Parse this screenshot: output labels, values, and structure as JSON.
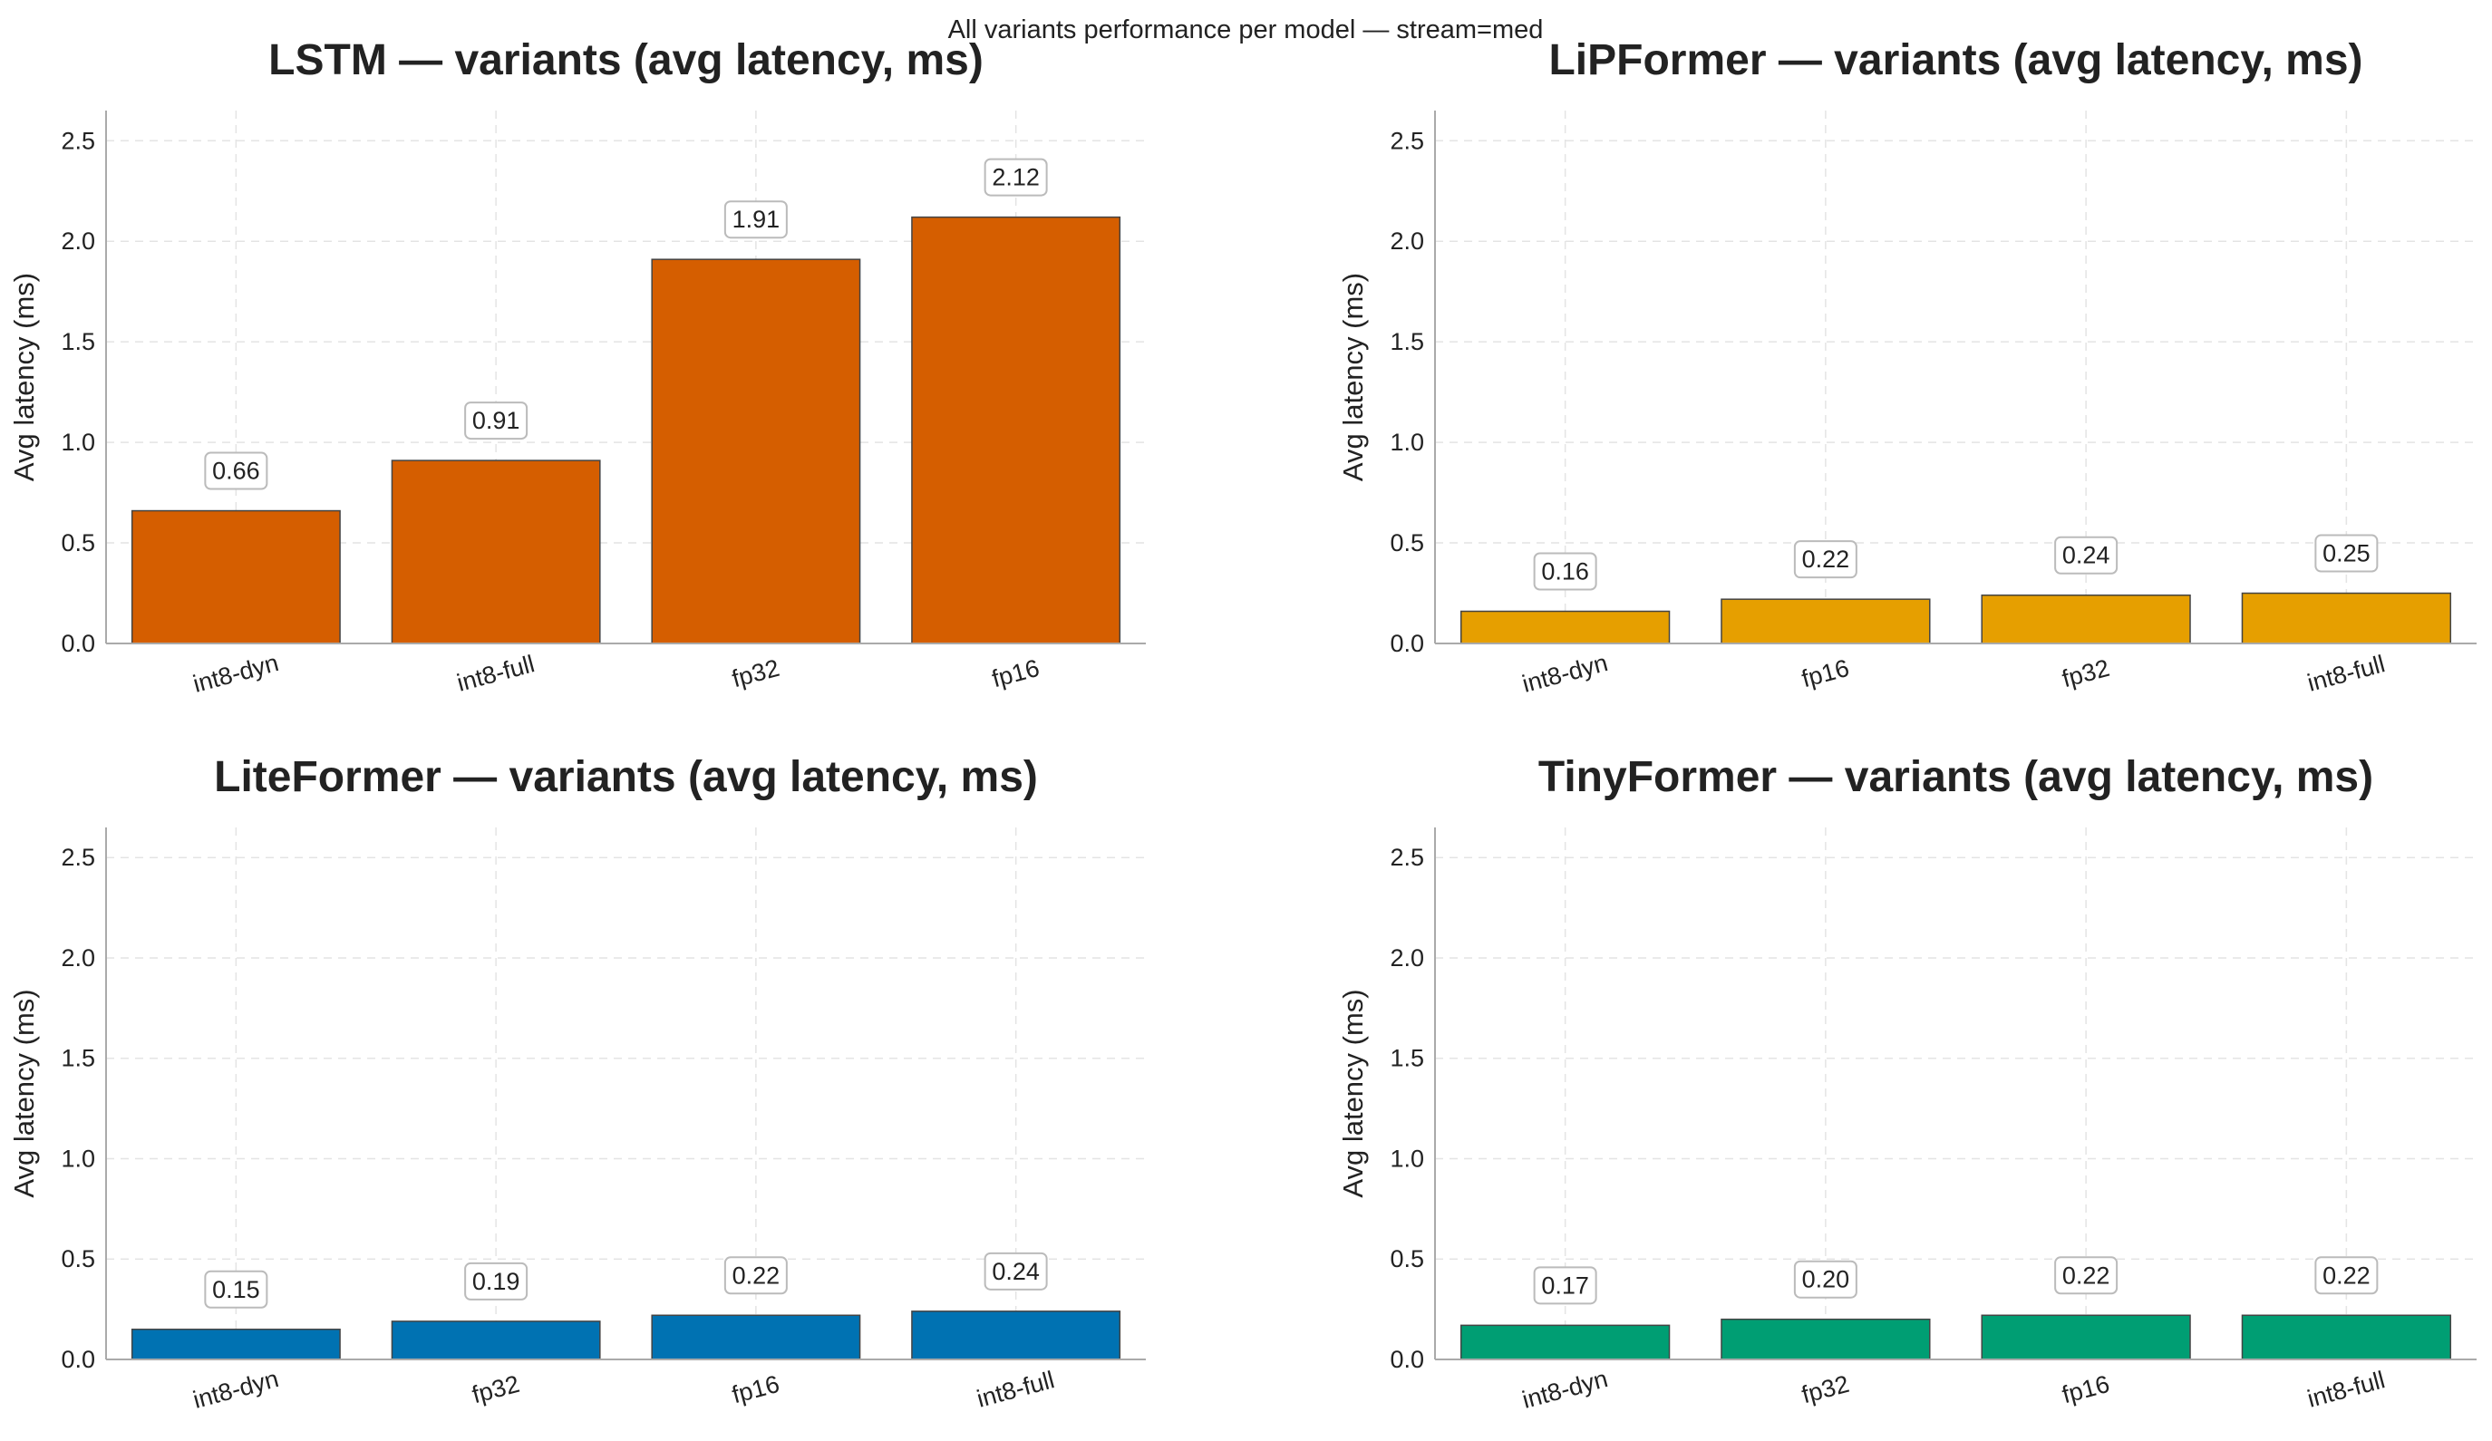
{
  "suptitle": "All variants performance per model — stream=med",
  "chart_data": [
    {
      "type": "bar",
      "title": "LSTM — variants (avg latency, ms)",
      "ylabel": "Avg latency (ms)",
      "xlabel": "",
      "ylim": [
        0,
        2.65
      ],
      "yticks": [
        "0.0",
        "0.5",
        "1.0",
        "1.5",
        "2.0",
        "2.5"
      ],
      "categories": [
        "int8-dyn",
        "int8-full",
        "fp32",
        "fp16"
      ],
      "values": [
        0.66,
        0.91,
        1.91,
        2.12
      ],
      "labels": [
        "0.66",
        "0.91",
        "1.91",
        "2.12"
      ],
      "color": "#d55e00",
      "grid": true
    },
    {
      "type": "bar",
      "title": "LiPFormer — variants (avg latency, ms)",
      "ylabel": "Avg latency (ms)",
      "xlabel": "",
      "ylim": [
        0,
        2.65
      ],
      "yticks": [
        "0.0",
        "0.5",
        "1.0",
        "1.5",
        "2.0",
        "2.5"
      ],
      "categories": [
        "int8-dyn",
        "fp16",
        "fp32",
        "int8-full"
      ],
      "values": [
        0.16,
        0.22,
        0.24,
        0.25
      ],
      "labels": [
        "0.16",
        "0.22",
        "0.24",
        "0.25"
      ],
      "color": "#e69f00",
      "grid": true
    },
    {
      "type": "bar",
      "title": "LiteFormer — variants (avg latency, ms)",
      "ylabel": "Avg latency (ms)",
      "xlabel": "",
      "ylim": [
        0,
        2.65
      ],
      "yticks": [
        "0.0",
        "0.5",
        "1.0",
        "1.5",
        "2.0",
        "2.5"
      ],
      "categories": [
        "int8-dyn",
        "fp32",
        "fp16",
        "int8-full"
      ],
      "values": [
        0.15,
        0.19,
        0.22,
        0.24
      ],
      "labels": [
        "0.15",
        "0.19",
        "0.22",
        "0.24"
      ],
      "color": "#0072b2",
      "grid": true
    },
    {
      "type": "bar",
      "title": "TinyFormer — variants (avg latency, ms)",
      "ylabel": "Avg latency (ms)",
      "xlabel": "",
      "ylim": [
        0,
        2.65
      ],
      "yticks": [
        "0.0",
        "0.5",
        "1.0",
        "1.5",
        "2.0",
        "2.5"
      ],
      "categories": [
        "int8-dyn",
        "fp32",
        "fp16",
        "int8-full"
      ],
      "values": [
        0.17,
        0.2,
        0.22,
        0.22
      ],
      "labels": [
        "0.17",
        "0.20",
        "0.22",
        "0.22"
      ],
      "color": "#009e73",
      "grid": true
    }
  ]
}
